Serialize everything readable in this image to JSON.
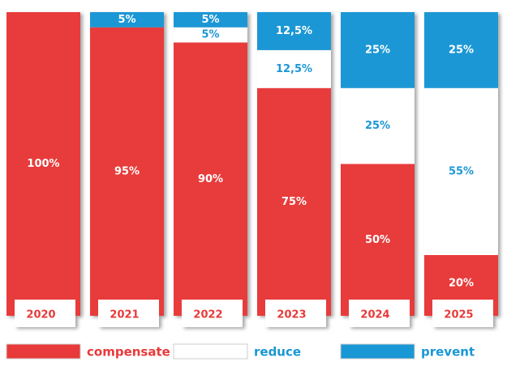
{
  "chart_data": {
    "type": "stacked_bar",
    "categories": [
      "2020",
      "2021",
      "2022",
      "2023",
      "2024",
      "2025"
    ],
    "series": [
      {
        "name": "compensate",
        "color": "#e83a3a",
        "label_color": "#ffffff",
        "values": [
          100,
          95,
          90,
          75,
          50,
          20
        ],
        "value_labels": [
          "100%",
          "95%",
          "90%",
          "75%",
          "50%",
          "20%"
        ]
      },
      {
        "name": "reduce",
        "color": "#ffffff",
        "label_color": "#1a97d5",
        "values": [
          0,
          0,
          5,
          12.5,
          25,
          55
        ],
        "value_labels": [
          null,
          null,
          "5%",
          "12,5%",
          "25%",
          "55%"
        ]
      },
      {
        "name": "prevent",
        "color": "#1a97d5",
        "label_color": "#ffffff",
        "values": [
          0,
          5,
          5,
          12.5,
          25,
          25
        ],
        "value_labels": [
          null,
          "5%",
          "5%",
          "12,5%",
          "25%",
          "25%"
        ]
      }
    ],
    "category_label_color": "#e83a3a",
    "legend_text_colors": [
      "#e83a3a",
      "#1a97d5",
      "#1a97d5"
    ]
  }
}
